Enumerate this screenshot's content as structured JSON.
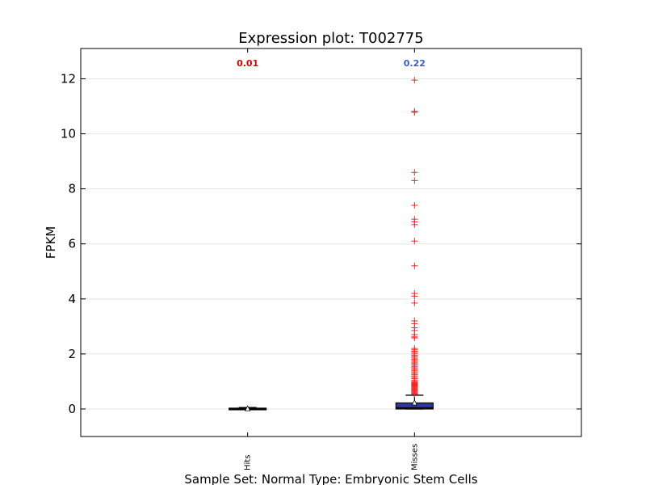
{
  "chart_data": {
    "type": "box",
    "title": "Expression plot: T002775",
    "xlabel": "Sample Set: Normal Type: Embryonic Stem Cells",
    "ylabel": "FPKM",
    "ylim": [
      -1,
      13.1
    ],
    "yticks": [
      0,
      2,
      4,
      6,
      8,
      10,
      12
    ],
    "grid": "horizontal",
    "categories": [
      "Hits",
      "Misses"
    ],
    "boxes": [
      {
        "label": "Hits",
        "annotation": "0.01",
        "annotation_color": "#dd0000",
        "box_color": "#b00000",
        "q1": -0.01,
        "median": 0.0,
        "q3": 0.03,
        "whisker_low": -0.01,
        "whisker_high": 0.05,
        "mean": 0.01,
        "outliers": []
      },
      {
        "label": "Misses",
        "annotation": "0.22",
        "annotation_color": "#3a5fcd",
        "box_color": "#2a35a8",
        "q1": 0.0,
        "median": 0.04,
        "q3": 0.22,
        "whisker_low": 0.0,
        "whisker_high": 0.5,
        "mean": 0.22,
        "outliers": [
          11.95,
          10.82,
          10.78,
          8.6,
          8.3,
          7.4,
          6.9,
          6.8,
          6.7,
          6.1,
          5.2,
          4.2,
          4.1,
          3.85,
          3.2,
          3.1,
          2.95,
          2.85,
          2.7,
          2.62,
          2.58,
          2.2,
          2.15,
          2.1,
          2.05,
          2.0,
          1.95,
          1.9,
          1.85,
          1.8,
          1.75,
          1.7,
          1.65,
          1.6,
          1.55,
          1.5,
          1.45,
          1.4,
          1.35,
          1.3,
          1.25,
          1.2,
          1.15,
          1.1,
          1.05,
          1.0,
          0.97,
          0.94,
          0.91,
          0.88,
          0.85,
          0.82,
          0.79,
          0.76,
          0.73,
          0.7,
          0.67,
          0.64,
          0.61,
          0.58,
          0.55,
          0.53
        ]
      }
    ]
  }
}
